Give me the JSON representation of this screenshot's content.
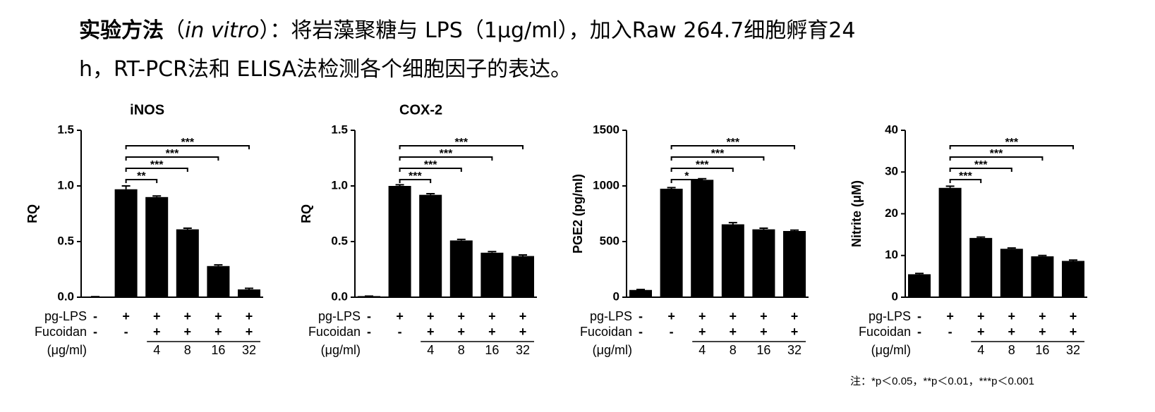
{
  "heading": {
    "bold": "实验方法",
    "open": "（",
    "italic": "in vitro",
    "line1_rest": "）：将岩藻聚糖与 LPS（1μg/ml），加入Raw 264.7细胞孵育24",
    "line2": "h，RT-PCR法和 ELISA法检测各个细胞因子的表达。"
  },
  "chart_data": [
    {
      "type": "bar",
      "title": "iNOS",
      "y_label": "RQ",
      "color": "#000000",
      "categories": [
        null,
        null,
        "4",
        "8",
        "16",
        "32"
      ],
      "rows": [
        {
          "label": "pg-LPS",
          "values": [
            "-",
            "+",
            "+",
            "+",
            "+",
            "+"
          ]
        },
        {
          "label": "Fucoidan",
          "values": [
            "-",
            "-",
            "+",
            "+",
            "+",
            "+"
          ]
        }
      ],
      "category_label": "(μg/ml)",
      "values": [
        0.005,
        0.97,
        0.9,
        0.61,
        0.28,
        0.07
      ],
      "errors": [
        0,
        0.03,
        0.01,
        0.01,
        0.01,
        0.01
      ],
      "ylim": [
        0,
        1.5
      ],
      "yticks": [
        {
          "value": 0,
          "label": "0.0"
        },
        0.5,
        {
          "value": 1,
          "label": "1.0"
        },
        1.5
      ],
      "significance": [
        {
          "from": 1,
          "to": 2,
          "label": "**"
        },
        {
          "from": 1,
          "to": 3,
          "label": "***"
        },
        {
          "from": 1,
          "to": 4,
          "label": "***"
        },
        {
          "from": 1,
          "to": 5,
          "label": "***"
        }
      ]
    },
    {
      "type": "bar",
      "title": "COX-2",
      "y_label": "RQ",
      "color": "#000000",
      "categories": [
        null,
        null,
        "4",
        "8",
        "16",
        "32"
      ],
      "rows": [
        {
          "label": "pg-LPS",
          "values": [
            "-",
            "+",
            "+",
            "+",
            "+",
            "+"
          ]
        },
        {
          "label": "Fucoidan",
          "values": [
            "-",
            "-",
            "+",
            "+",
            "+",
            "+"
          ]
        }
      ],
      "category_label": "(μg/ml)",
      "values": [
        0.01,
        1.0,
        0.92,
        0.51,
        0.4,
        0.37
      ],
      "errors": [
        0,
        0.01,
        0.01,
        0.01,
        0.01,
        0.01
      ],
      "ylim": [
        0,
        1.5
      ],
      "yticks": [
        {
          "value": 0,
          "label": "0.0"
        },
        0.5,
        {
          "value": 1,
          "label": "1.0"
        },
        1.5
      ],
      "significance": [
        {
          "from": 1,
          "to": 2,
          "label": "***"
        },
        {
          "from": 1,
          "to": 3,
          "label": "***"
        },
        {
          "from": 1,
          "to": 4,
          "label": "***"
        },
        {
          "from": 1,
          "to": 5,
          "label": "***"
        }
      ]
    },
    {
      "type": "bar",
      "y_label": "PGE2 (pg/ml)",
      "color": "#000000",
      "categories": [
        null,
        null,
        "4",
        "8",
        "16",
        "32"
      ],
      "rows": [
        {
          "label": "pg-LPS",
          "values": [
            "-",
            "+",
            "+",
            "+",
            "+",
            "+"
          ]
        },
        {
          "label": "Fucoidan",
          "values": [
            "-",
            "-",
            "+",
            "+",
            "+",
            "+"
          ]
        }
      ],
      "category_label": "(μg/ml)",
      "values": [
        65,
        975,
        1055,
        655,
        610,
        595
      ],
      "errors": [
        5,
        10,
        10,
        15,
        10,
        8
      ],
      "ylim": [
        0,
        1500
      ],
      "yticks": [
        0,
        500,
        1000,
        1500
      ],
      "significance": [
        {
          "from": 1,
          "to": 2,
          "label": "*"
        },
        {
          "from": 1,
          "to": 3,
          "label": "***"
        },
        {
          "from": 1,
          "to": 4,
          "label": "***"
        },
        {
          "from": 1,
          "to": 5,
          "label": "***"
        }
      ]
    },
    {
      "type": "bar",
      "y_label": "Nitrite (μM)",
      "color": "#000000",
      "categories": [
        null,
        null,
        "4",
        "8",
        "16",
        "32"
      ],
      "rows": [
        {
          "label": "pg-LPS",
          "values": [
            "-",
            "+",
            "+",
            "+",
            "+",
            "+"
          ]
        },
        {
          "label": "Fucoidan",
          "values": [
            "-",
            "-",
            "+",
            "+",
            "+",
            "+"
          ]
        }
      ],
      "category_label": "(μg/ml)",
      "values": [
        5.5,
        26.2,
        14.2,
        11.6,
        9.8,
        8.7
      ],
      "errors": [
        0.2,
        0.4,
        0.2,
        0.2,
        0.2,
        0.2
      ],
      "ylim": [
        0,
        40
      ],
      "yticks": [
        0,
        10,
        20,
        30,
        40
      ],
      "significance": [
        {
          "from": 1,
          "to": 2,
          "label": "***"
        },
        {
          "from": 1,
          "to": 3,
          "label": "***"
        },
        {
          "from": 1,
          "to": 4,
          "label": "***"
        },
        {
          "from": 1,
          "to": 5,
          "label": "***"
        }
      ]
    }
  ],
  "footnote": "注：*p＜0.05，**p＜0.01，***p＜0.001"
}
